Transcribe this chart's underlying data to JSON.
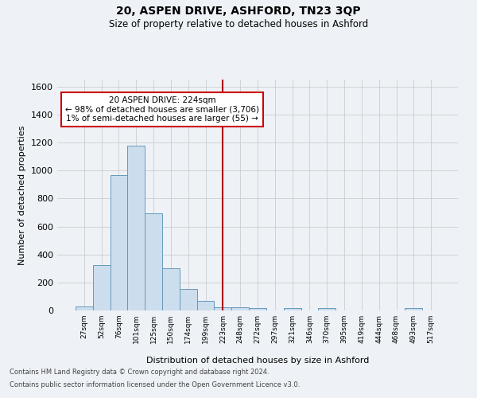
{
  "title": "20, ASPEN DRIVE, ASHFORD, TN23 3QP",
  "subtitle": "Size of property relative to detached houses in Ashford",
  "xlabel": "Distribution of detached houses by size in Ashford",
  "ylabel": "Number of detached properties",
  "footnote1": "Contains HM Land Registry data © Crown copyright and database right 2024.",
  "footnote2": "Contains public sector information licensed under the Open Government Licence v3.0.",
  "categories": [
    "27sqm",
    "52sqm",
    "76sqm",
    "101sqm",
    "125sqm",
    "150sqm",
    "174sqm",
    "199sqm",
    "223sqm",
    "248sqm",
    "272sqm",
    "297sqm",
    "321sqm",
    "346sqm",
    "370sqm",
    "395sqm",
    "419sqm",
    "444sqm",
    "468sqm",
    "493sqm",
    "517sqm"
  ],
  "values": [
    30,
    325,
    965,
    1175,
    695,
    300,
    155,
    70,
    25,
    20,
    15,
    0,
    15,
    0,
    15,
    0,
    0,
    0,
    0,
    15,
    0
  ],
  "bar_color": "#ccdded",
  "bar_edge_color": "#6699bb",
  "vline_x_idx": 8,
  "vline_color": "#aa0000",
  "ylim": [
    0,
    1650
  ],
  "yticks": [
    0,
    200,
    400,
    600,
    800,
    1000,
    1200,
    1400,
    1600
  ],
  "annotation_text": "20 ASPEN DRIVE: 224sqm\n← 98% of detached houses are smaller (3,706)\n1% of semi-detached houses are larger (55) →",
  "annotation_box_color": "#ffffff",
  "annotation_box_edge": "#cc0000",
  "bg_color": "#eef2f7"
}
